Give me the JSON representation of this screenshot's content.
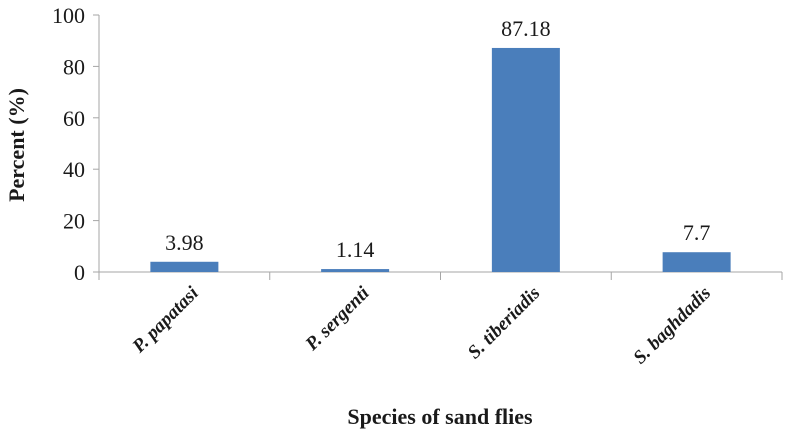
{
  "chart_data": {
    "type": "bar",
    "categories": [
      "P. papatasi",
      "P. sergenti",
      "S. tiberiadis",
      "S. baghdadis"
    ],
    "values": [
      3.98,
      1.14,
      87.18,
      7.7
    ],
    "value_labels": [
      "3.98",
      "1.14",
      "87.18",
      "7.7"
    ],
    "xlabel": "Species of sand flies",
    "ylabel": "Percent (%)",
    "ylim": [
      0,
      100
    ],
    "yticks": [
      "0",
      "20",
      "40",
      "60",
      "80",
      "100"
    ],
    "grid": false,
    "legend": "none",
    "bar_color": "#4a7ebb"
  }
}
